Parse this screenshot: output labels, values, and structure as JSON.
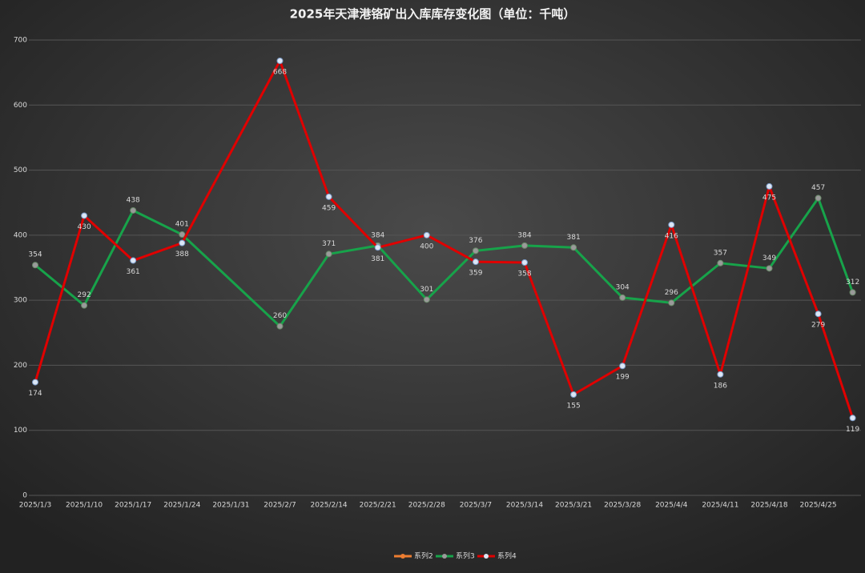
{
  "chart_data": {
    "type": "line",
    "title": "2025年天津港铬矿出入库库存变化图（单位：千吨）",
    "x": [
      "2025/1/3",
      "2025/1/10",
      "2025/1/17",
      "2025/1/24",
      "2025/2/7",
      "2025/2/14",
      "2025/2/21",
      "2025/2/28",
      "2025/3/7",
      "2025/3/14",
      "2025/3/21",
      "2025/3/28",
      "2025/4/4",
      "2025/4/11",
      "2025/4/18",
      "2025/4/25",
      null
    ],
    "xticks": [
      "2025/1/3",
      "2025/1/10",
      "2025/1/17",
      "2025/1/24",
      "2025/1/31",
      "2025/2/7",
      "2025/2/14",
      "2025/2/21",
      "2025/2/28",
      "2025/3/7",
      "2025/3/14",
      "2025/3/21",
      "2025/3/28",
      "2025/4/4",
      "2025/4/11",
      "2025/4/18",
      "2025/4/25"
    ],
    "series": [
      {
        "name": "系列2",
        "color": "#ed7d31",
        "values": [
          null,
          null,
          null,
          null,
          null,
          null,
          null,
          null,
          null,
          null,
          null,
          null,
          null,
          null,
          null,
          null,
          null
        ]
      },
      {
        "name": "系列3",
        "color": "#17a34a",
        "values": [
          354,
          292,
          438,
          401,
          260,
          371,
          384,
          301,
          376,
          384,
          381,
          304,
          296,
          357,
          349,
          457,
          312
        ]
      },
      {
        "name": "系列4",
        "color": "#e00000",
        "values": [
          174,
          430,
          361,
          388,
          668,
          459,
          381,
          400,
          359,
          358,
          155,
          199,
          416,
          186,
          475,
          279,
          119
        ]
      }
    ],
    "ylim": [
      0,
      700
    ],
    "yticks": [
      0,
      100,
      200,
      300,
      400,
      500,
      600,
      700
    ],
    "grid": true
  }
}
